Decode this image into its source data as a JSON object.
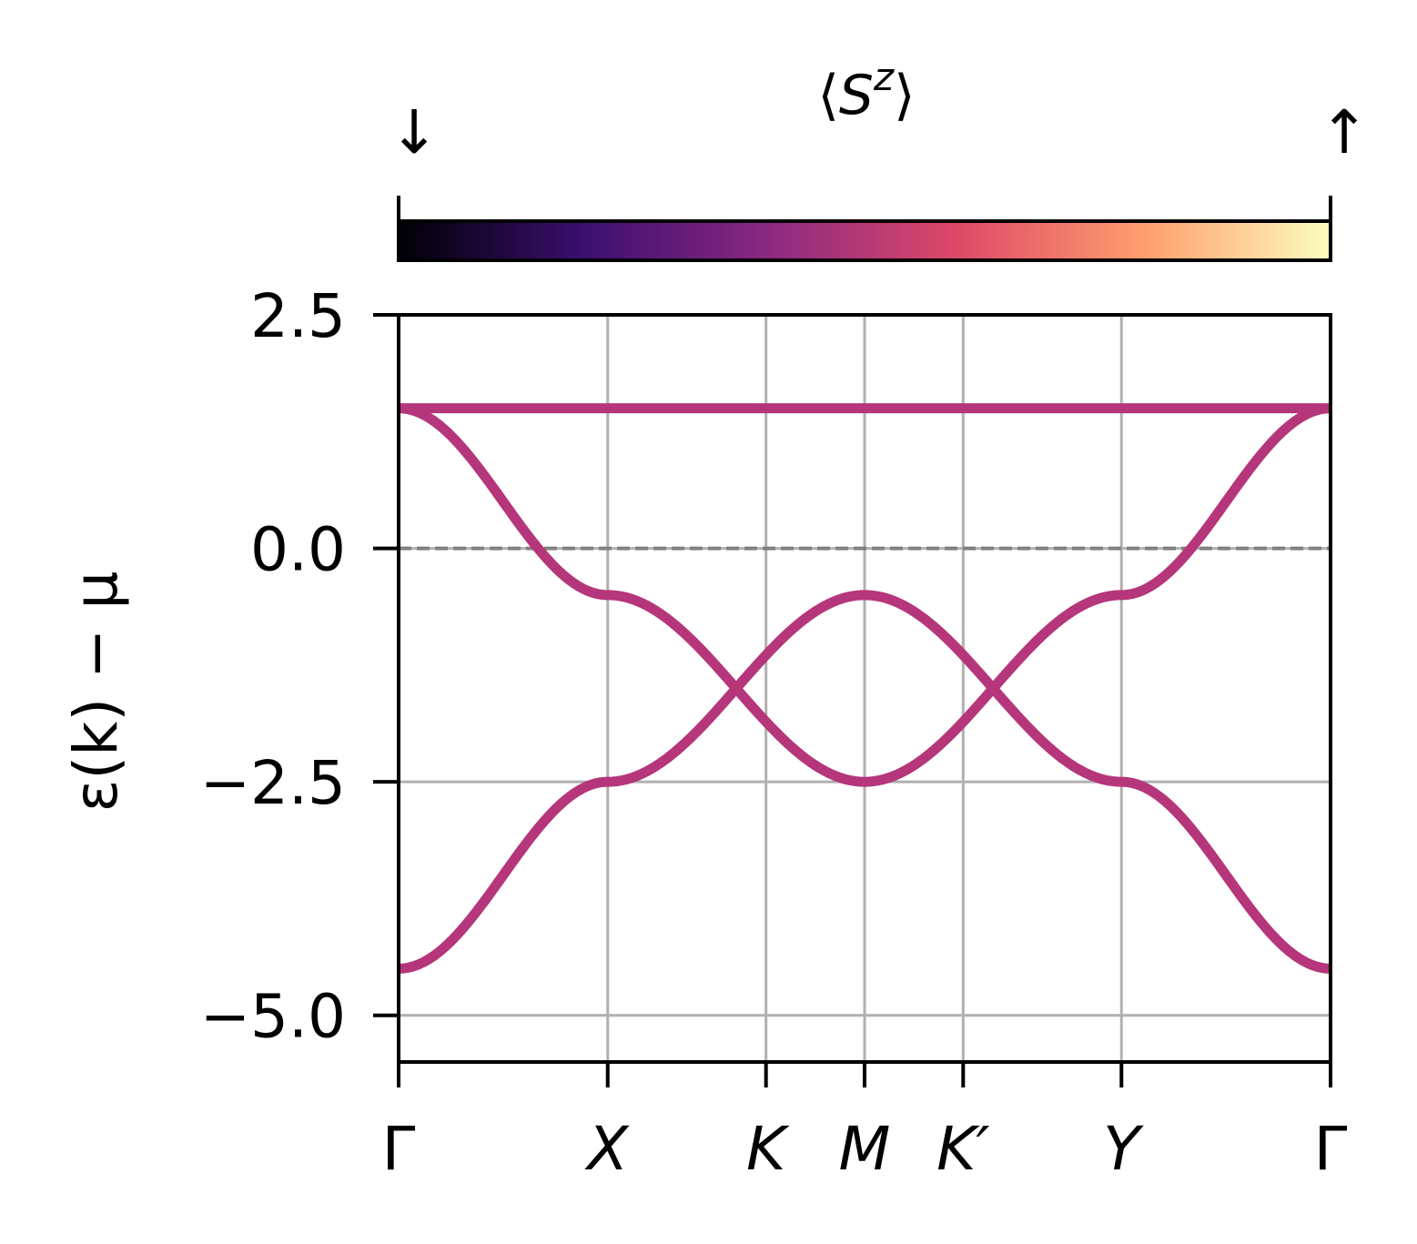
{
  "chart_data": {
    "type": "line",
    "ylabel": "ε(k) − μ",
    "ylim": [
      -5.5,
      2.5
    ],
    "y_ticks": [
      {
        "value": 2.5,
        "label": "2.5"
      },
      {
        "value": 0.0,
        "label": "0.0"
      },
      {
        "value": -2.5,
        "label": "−2.5"
      },
      {
        "value": -5.0,
        "label": "−5.0"
      }
    ],
    "k_points": [
      {
        "pos": 0.0,
        "label": "Γ",
        "italic": false
      },
      {
        "pos": 1.0,
        "label": "X",
        "italic": true
      },
      {
        "pos": 1.7571,
        "label": "K",
        "italic": true
      },
      {
        "pos": 2.2286,
        "label": "M",
        "italic": true
      },
      {
        "pos": 2.7,
        "label": "K′",
        "italic": true
      },
      {
        "pos": 3.4571,
        "label": "Y",
        "italic": true
      },
      {
        "pos": 4.4571,
        "label": "Γ",
        "italic": false
      }
    ],
    "fermi_level": 0.0,
    "grid": true,
    "band_color": "#b5367a",
    "series": [
      {
        "segments": [
          {
            "from": 0.0,
            "to": 1.0,
            "shape": "cos",
            "y0": 1.5,
            "y1": 1.5
          },
          {
            "from": 1.0,
            "to": 4.4571,
            "shape": "cos",
            "y0": 1.5,
            "y1": 1.5
          }
        ]
      },
      {
        "segments": [
          {
            "from": 0.0,
            "to": 1.0,
            "shape": "cos",
            "y0": 1.5,
            "y1": -0.5
          },
          {
            "from": 1.0,
            "to": 2.2286,
            "shape": "cos",
            "y0": -0.5,
            "y1": -2.5
          },
          {
            "from": 2.2286,
            "to": 3.4571,
            "shape": "cos",
            "y0": -2.5,
            "y1": -0.5
          },
          {
            "from": 3.4571,
            "to": 4.4571,
            "shape": "cos",
            "y0": -0.5,
            "y1": 1.5
          }
        ]
      },
      {
        "segments": [
          {
            "from": 0.0,
            "to": 1.0,
            "shape": "cos",
            "y0": -4.5,
            "y1": -2.5
          },
          {
            "from": 1.0,
            "to": 2.2286,
            "shape": "cos",
            "y0": -2.5,
            "y1": -0.5
          },
          {
            "from": 2.2286,
            "to": 3.4571,
            "shape": "cos",
            "y0": -0.5,
            "y1": -2.5
          },
          {
            "from": 3.4571,
            "to": 4.4571,
            "shape": "cos",
            "y0": -2.5,
            "y1": -4.5
          }
        ]
      }
    ],
    "colorbar": {
      "title": "⟨S^z⟩",
      "low_label": "↓",
      "high_label": "↑",
      "colormap": "magma",
      "stops": [
        "#000004",
        "#3b0f70",
        "#8c2981",
        "#de4968",
        "#fe9f6d",
        "#fcfdbf"
      ]
    }
  }
}
